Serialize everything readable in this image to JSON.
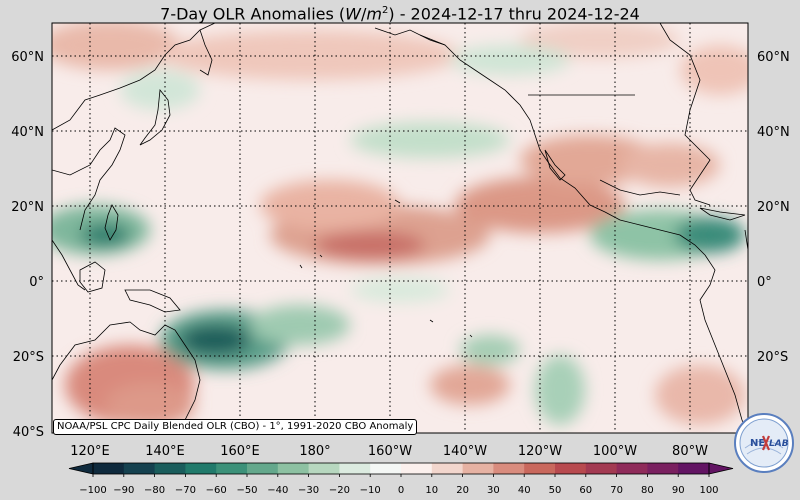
{
  "title": {
    "prefix": "7-Day OLR Anomalies (",
    "unit_w": "W",
    "unit_slash": "/",
    "unit_m": "m",
    "unit_exp": "2",
    "suffix": ") - 2024-12-17 thru 2024-12-24"
  },
  "map": {
    "lat_labels": [
      "60°N",
      "40°N",
      "20°N",
      "0°",
      "20°S",
      "40°S"
    ],
    "lon_labels": [
      "120°E",
      "140°E",
      "160°E",
      "180°",
      "160°W",
      "140°W",
      "120°W",
      "100°W",
      "80°W"
    ],
    "credit": "NOAA/PSL CPC Daily Blended OLR (CBO) - 1°, 1991-2020 CBO Anomaly",
    "land_color": "#000000",
    "gridline_style": "dotted"
  },
  "colorbar": {
    "ticks": [
      "−100",
      "−90",
      "−80",
      "−70",
      "−60",
      "−50",
      "−40",
      "−30",
      "−20",
      "−10",
      "0",
      "10",
      "20",
      "30",
      "40",
      "50",
      "60",
      "70",
      "80",
      "90",
      "100"
    ],
    "colors": [
      "#0f2a3d",
      "#15414f",
      "#1a5d5c",
      "#217a6b",
      "#3c9179",
      "#64a88c",
      "#8dc1a2",
      "#b7d7bf",
      "#dcebe0",
      "#f4f7f5",
      "#fbf0ed",
      "#f2d6cd",
      "#e6b2a3",
      "#d98c7e",
      "#c9685d",
      "#b84a4f",
      "#a33a52",
      "#8f2b5a",
      "#7a2060",
      "#621463"
    ]
  },
  "logo": {
    "text_left": "NE",
    "text_right": "LAB"
  }
}
